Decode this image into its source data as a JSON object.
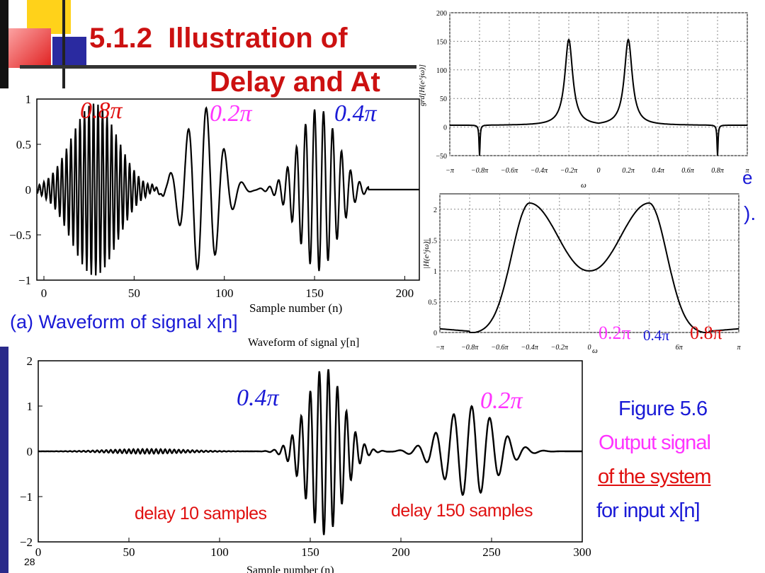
{
  "slide": {
    "title_line1": "5.1.2  Illustration of",
    "title_line2": "Delay and At",
    "page_number": "28",
    "colors": {
      "title": "#cc1111",
      "blue": "#1a1ad6",
      "magenta": "#ff33ff",
      "red": "#e01010",
      "sidebar": "#2a2a8a"
    }
  },
  "wave_x": {
    "y_ticks": [
      "1",
      "0.5",
      "0",
      "−0.5",
      "−1"
    ],
    "x_ticks": [
      "0",
      "50",
      "100",
      "150",
      "200"
    ],
    "xlabel": "Sample number (n)",
    "caption": "(a) Waveform of signal x[n]",
    "freq_labels": [
      "0.8π",
      "0.2π",
      "0.4π"
    ]
  },
  "group_delay": {
    "ylabel": "grd[H(e^jω)]",
    "y_ticks": [
      "200",
      "150",
      "100",
      "50",
      "0",
      "−50"
    ],
    "x_ticks": [
      "−π",
      "−0.8π",
      "−0.6π",
      "−0.4π",
      "−0.2π",
      "0",
      "0.2π",
      "0.4π",
      "0.6π",
      "0.8π",
      "π"
    ],
    "xlabel": "ω"
  },
  "magnitude": {
    "ylabel": "|H(e^jω)|",
    "y_ticks": [
      "2",
      "1.5",
      "1",
      "0.5",
      "0"
    ],
    "x_ticks": [
      "−π",
      "−0.8π",
      "−0.6π",
      "−0.4π",
      "−0.2π",
      "0",
      "6π",
      "π"
    ],
    "xlabel": "ω",
    "freq_labels": [
      "0.2π",
      "0.4π",
      "0.8π"
    ]
  },
  "clipped_text": {
    "right_e": "e",
    "right_paren": ")."
  },
  "wave_y": {
    "title": "Waveform of signal y[n]",
    "y_ticks": [
      "2",
      "1",
      "0",
      "−1",
      "−2"
    ],
    "x_ticks": [
      "0",
      "50",
      "100",
      "150",
      "200",
      "250",
      "300"
    ],
    "xlabel": "Sample number (n)",
    "freq_labels": [
      "0.4π",
      "0.2π"
    ],
    "annotations": [
      "delay 10 samples",
      "delay 150 samples"
    ]
  },
  "figure_caption": {
    "line1": "Figure 5.6",
    "line2": "Output signal",
    "line3": "of the system",
    "line4": "for input x[n]"
  }
}
